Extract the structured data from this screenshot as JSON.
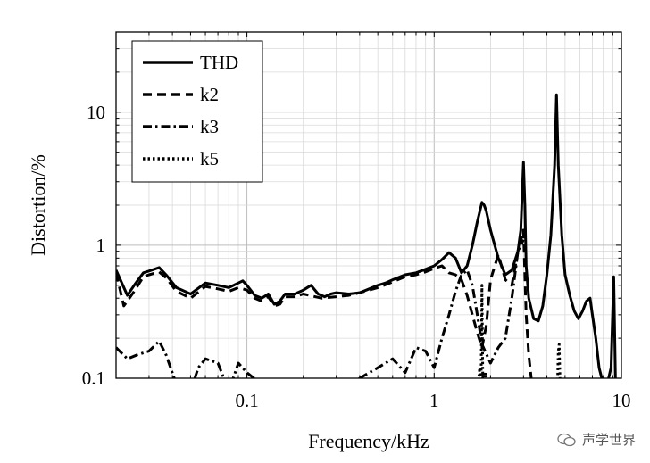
{
  "chart_data": {
    "type": "line",
    "title": "",
    "xlabel": "Frequency/kHz",
    "ylabel": "Distortion/%",
    "xscale": "log",
    "yscale": "log",
    "xlim": [
      0.02,
      10
    ],
    "ylim": [
      0.1,
      40
    ],
    "grid": true,
    "legend_position": "top-left",
    "x_ticks": [
      {
        "value": 0.1,
        "label": "0.1"
      },
      {
        "value": 1,
        "label": "1"
      },
      {
        "value": 10,
        "label": "10"
      }
    ],
    "y_ticks": [
      {
        "value": 0.1,
        "label": "0.1"
      },
      {
        "value": 1,
        "label": "1"
      },
      {
        "value": 10,
        "label": "10"
      }
    ],
    "series": [
      {
        "name": "THD",
        "style": "solid",
        "x": [
          0.02,
          0.023,
          0.025,
          0.028,
          0.03,
          0.034,
          0.037,
          0.042,
          0.05,
          0.06,
          0.07,
          0.08,
          0.09,
          0.095,
          0.1,
          0.11,
          0.12,
          0.13,
          0.14,
          0.15,
          0.16,
          0.18,
          0.2,
          0.22,
          0.24,
          0.26,
          0.28,
          0.3,
          0.35,
          0.4,
          0.45,
          0.5,
          0.55,
          0.6,
          0.7,
          0.8,
          0.9,
          1.0,
          1.1,
          1.2,
          1.3,
          1.4,
          1.5,
          1.6,
          1.7,
          1.8,
          1.85,
          1.9,
          2.0,
          2.2,
          2.4,
          2.6,
          2.8,
          2.9,
          3.0,
          3.05,
          3.1,
          3.2,
          3.4,
          3.6,
          3.8,
          4.0,
          4.2,
          4.4,
          4.5,
          4.6,
          4.8,
          5.0,
          5.3,
          5.6,
          5.9,
          6.2,
          6.5,
          6.8,
          7.0,
          7.3,
          7.6,
          8.0,
          8.4,
          8.8,
          9.1,
          9.3,
          9.5
        ],
        "y": [
          0.65,
          0.42,
          0.5,
          0.62,
          0.64,
          0.68,
          0.6,
          0.48,
          0.43,
          0.52,
          0.5,
          0.48,
          0.52,
          0.54,
          0.5,
          0.42,
          0.4,
          0.43,
          0.36,
          0.38,
          0.43,
          0.43,
          0.46,
          0.5,
          0.43,
          0.41,
          0.43,
          0.44,
          0.43,
          0.44,
          0.47,
          0.5,
          0.52,
          0.55,
          0.6,
          0.62,
          0.66,
          0.7,
          0.78,
          0.88,
          0.8,
          0.62,
          0.7,
          1.0,
          1.5,
          2.1,
          2.0,
          1.8,
          1.3,
          0.8,
          0.6,
          0.65,
          0.9,
          1.3,
          4.2,
          2.0,
          0.7,
          0.4,
          0.28,
          0.27,
          0.35,
          0.6,
          1.2,
          4.0,
          13.5,
          4.0,
          1.2,
          0.6,
          0.42,
          0.32,
          0.28,
          0.32,
          0.38,
          0.4,
          0.3,
          0.2,
          0.12,
          0.09,
          0.09,
          0.12,
          0.58,
          0.09,
          0.09
        ]
      },
      {
        "name": "k2",
        "style": "dashed",
        "x": [
          0.02,
          0.022,
          0.025,
          0.028,
          0.03,
          0.034,
          0.037,
          0.042,
          0.05,
          0.06,
          0.07,
          0.08,
          0.09,
          0.1,
          0.11,
          0.12,
          0.13,
          0.14,
          0.15,
          0.16,
          0.18,
          0.2,
          0.25,
          0.3,
          0.35,
          0.4,
          0.5,
          0.6,
          0.7,
          0.8,
          0.9,
          1.0,
          1.1,
          1.2,
          1.3,
          1.4,
          1.5,
          1.6,
          1.7,
          1.8,
          1.9,
          2.0,
          2.2,
          2.4,
          2.6,
          2.8,
          3.0,
          3.1,
          3.2,
          3.3,
          3.4
        ],
        "y": [
          0.62,
          0.35,
          0.45,
          0.58,
          0.6,
          0.63,
          0.57,
          0.45,
          0.4,
          0.49,
          0.47,
          0.45,
          0.48,
          0.46,
          0.4,
          0.38,
          0.41,
          0.35,
          0.36,
          0.41,
          0.41,
          0.43,
          0.4,
          0.41,
          0.42,
          0.44,
          0.48,
          0.53,
          0.58,
          0.6,
          0.63,
          0.67,
          0.7,
          0.62,
          0.6,
          0.55,
          0.42,
          0.3,
          0.22,
          0.17,
          0.25,
          0.55,
          0.85,
          0.55,
          0.5,
          0.9,
          1.3,
          0.3,
          0.15,
          0.1,
          0.08
        ]
      },
      {
        "name": "k3",
        "style": "dash-dot",
        "x": [
          0.02,
          0.023,
          0.026,
          0.03,
          0.034,
          0.037,
          0.042,
          0.05,
          0.055,
          0.06,
          0.07,
          0.08,
          0.09,
          0.1,
          0.12,
          0.14,
          0.16,
          0.18,
          0.2,
          0.25,
          0.3,
          0.35,
          0.4,
          0.5,
          0.6,
          0.7,
          0.8,
          0.9,
          1.0,
          1.1,
          1.2,
          1.3,
          1.4,
          1.5,
          1.6,
          1.7,
          1.8,
          2.0,
          2.2,
          2.4,
          2.6,
          2.8,
          3.0
        ],
        "y": [
          0.17,
          0.14,
          0.15,
          0.16,
          0.19,
          0.15,
          0.09,
          0.08,
          0.12,
          0.14,
          0.13,
          0.08,
          0.13,
          0.11,
          0.09,
          0.08,
          0.09,
          0.08,
          0.08,
          0.08,
          0.08,
          0.08,
          0.1,
          0.12,
          0.14,
          0.11,
          0.17,
          0.16,
          0.12,
          0.2,
          0.3,
          0.45,
          0.6,
          0.65,
          0.5,
          0.3,
          0.18,
          0.13,
          0.17,
          0.2,
          0.4,
          0.9,
          1.1
        ]
      },
      {
        "name": "k5",
        "style": "dotted",
        "x": [
          1.7,
          1.75,
          1.78,
          1.8,
          1.82,
          1.84,
          1.86,
          1.88,
          1.9,
          4.55,
          4.6,
          4.65,
          4.7,
          4.75,
          4.8
        ],
        "y": [
          0.08,
          0.12,
          0.09,
          0.5,
          0.09,
          0.11,
          0.08,
          0.11,
          0.08,
          0.08,
          0.16,
          0.18,
          0.1,
          0.08,
          0.08
        ]
      }
    ]
  },
  "watermark": {
    "text": "声学世界",
    "icon": "wechat-icon"
  }
}
